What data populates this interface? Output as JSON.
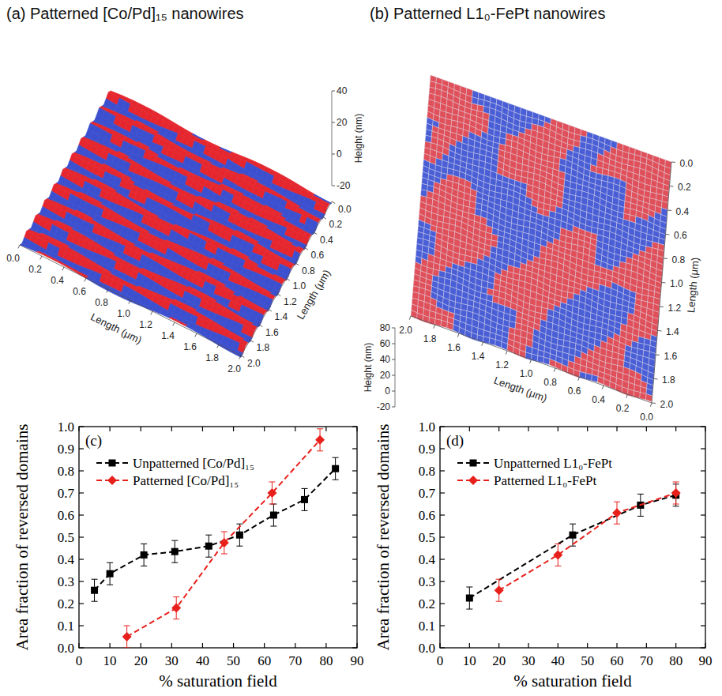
{
  "chart_data": [
    {
      "type": "surface",
      "title": "(a) Patterned [Co/Pd]₁₅ nanowires",
      "xlabel": "Length (μm)",
      "ylabel": "Length (μm)",
      "zlabel": "Height (nm)",
      "xlim": [
        0,
        2
      ],
      "xticks": [
        {
          "value": 0,
          "label": "0.0"
        },
        {
          "value": 0.2,
          "label": "0.2"
        },
        {
          "value": 0.4,
          "label": "0.4"
        },
        {
          "value": 0.6,
          "label": "0.6"
        },
        {
          "value": 0.8,
          "label": "0.8"
        },
        {
          "value": 1,
          "label": "1.0"
        },
        {
          "value": 1.2,
          "label": "1.2"
        },
        {
          "value": 1.4,
          "label": "1.4"
        },
        {
          "value": 1.6,
          "label": "1.6"
        },
        {
          "value": 1.8,
          "label": "1.8"
        },
        {
          "value": 2,
          "label": "2.0"
        }
      ],
      "ylim": [
        0,
        2
      ],
      "yticks": [
        {
          "value": 0,
          "label": "0.0"
        },
        {
          "value": 0.2,
          "label": "0.2"
        },
        {
          "value": 0.4,
          "label": "0.4"
        },
        {
          "value": 0.6,
          "label": "0.6"
        },
        {
          "value": 0.8,
          "label": "0.8"
        },
        {
          "value": 1,
          "label": "1.0"
        },
        {
          "value": 1.2,
          "label": "1.2"
        },
        {
          "value": 1.4,
          "label": "1.4"
        },
        {
          "value": 1.6,
          "label": "1.6"
        },
        {
          "value": 1.8,
          "label": "1.8"
        },
        {
          "value": 2,
          "label": "2.0"
        }
      ],
      "zlim": [
        -20,
        40
      ],
      "zticks": [
        -20,
        0,
        20,
        40
      ]
    },
    {
      "type": "surface",
      "title": "(b) Patterned L1₀-FePt nanowires",
      "xlabel": "Length (μm)",
      "ylabel": "Length (μm)",
      "zlabel": "Height (nm)",
      "xlim": [
        2,
        0
      ],
      "xticks": [
        {
          "value": 2,
          "label": "2.0"
        },
        {
          "value": 1.8,
          "label": "1.8"
        },
        {
          "value": 1.6,
          "label": "1.6"
        },
        {
          "value": 1.4,
          "label": "1.4"
        },
        {
          "value": 1.2,
          "label": "1.2"
        },
        {
          "value": 1,
          "label": "1.0"
        },
        {
          "value": 0.8,
          "label": "0.8"
        },
        {
          "value": 0.6,
          "label": "0.6"
        },
        {
          "value": 0.4,
          "label": "0.4"
        },
        {
          "value": 0.2,
          "label": "0.2"
        },
        {
          "value": 0,
          "label": "0.0"
        }
      ],
      "ylim": [
        0,
        2
      ],
      "yticks": [
        {
          "value": 0,
          "label": "0.0"
        },
        {
          "value": 0.2,
          "label": "0.2"
        },
        {
          "value": 0.4,
          "label": "0.4"
        },
        {
          "value": 0.6,
          "label": "0.6"
        },
        {
          "value": 0.8,
          "label": "0.8"
        },
        {
          "value": 1,
          "label": "1.0"
        },
        {
          "value": 1.2,
          "label": "1.2"
        },
        {
          "value": 1.4,
          "label": "1.4"
        },
        {
          "value": 1.6,
          "label": "1.6"
        },
        {
          "value": 1.8,
          "label": "1.8"
        },
        {
          "value": 2,
          "label": "2.0"
        }
      ],
      "zlim": [
        -20,
        80
      ],
      "zticks": [
        -20,
        0,
        20,
        40,
        60,
        80
      ]
    },
    {
      "type": "line",
      "panel_label": "(c)",
      "xlabel": "% saturation field",
      "ylabel": "Area fraction of reversed domains",
      "xlim": [
        0,
        90
      ],
      "xticks": [
        0,
        10,
        20,
        30,
        40,
        50,
        60,
        70,
        80,
        90
      ],
      "ylim": [
        0,
        1
      ],
      "yticks": [
        {
          "value": 0,
          "label": "0.0"
        },
        {
          "value": 0.1,
          "label": "0.1"
        },
        {
          "value": 0.2,
          "label": "0.2"
        },
        {
          "value": 0.3,
          "label": "0.3"
        },
        {
          "value": 0.4,
          "label": "0.4"
        },
        {
          "value": 0.5,
          "label": "0.5"
        },
        {
          "value": 0.6,
          "label": "0.6"
        },
        {
          "value": 0.7,
          "label": "0.7"
        },
        {
          "value": 0.8,
          "label": "0.8"
        },
        {
          "value": 0.9,
          "label": "0.9"
        },
        {
          "value": 1,
          "label": "1.0"
        }
      ],
      "legend": "upper left",
      "series": [
        {
          "name": "Unpatterned [Co/Pd]₁₅",
          "color": "#000000",
          "marker": "square",
          "line_style": "dashed",
          "x": [
            5,
            10,
            21,
            31,
            42,
            52,
            63,
            73,
            83
          ],
          "values": [
            0.26,
            0.335,
            0.42,
            0.435,
            0.46,
            0.51,
            0.6,
            0.67,
            0.81
          ],
          "errors": [
            0.05,
            0.05,
            0.05,
            0.05,
            0.05,
            0.05,
            0.05,
            0.05,
            0.05
          ]
        },
        {
          "name": "Patterned [Co/Pd]₁₅",
          "color": "#e8201c",
          "marker": "diamond",
          "line_style": "dashed",
          "x": [
            15.5,
            31.5,
            47,
            62.5,
            78
          ],
          "values": [
            0.05,
            0.18,
            0.475,
            0.7,
            0.94
          ],
          "errors": [
            0.05,
            0.05,
            0.05,
            0.05,
            0.05
          ]
        }
      ]
    },
    {
      "type": "line",
      "panel_label": "(d)",
      "xlabel": "% saturation field",
      "ylabel": "Area fraction of reversed domains",
      "xlim": [
        0,
        90
      ],
      "xticks": [
        0,
        10,
        20,
        30,
        40,
        50,
        60,
        70,
        80,
        90
      ],
      "ylim": [
        0,
        1
      ],
      "yticks": [
        {
          "value": 0,
          "label": "0.0"
        },
        {
          "value": 0.1,
          "label": "0.1"
        },
        {
          "value": 0.2,
          "label": "0.2"
        },
        {
          "value": 0.3,
          "label": "0.3"
        },
        {
          "value": 0.4,
          "label": "0.4"
        },
        {
          "value": 0.5,
          "label": "0.5"
        },
        {
          "value": 0.6,
          "label": "0.6"
        },
        {
          "value": 0.7,
          "label": "0.7"
        },
        {
          "value": 0.8,
          "label": "0.8"
        },
        {
          "value": 0.9,
          "label": "0.9"
        },
        {
          "value": 1,
          "label": "1.0"
        }
      ],
      "legend": "upper left",
      "series": [
        {
          "name": "Unpatterned L1₀-FePt",
          "color": "#000000",
          "marker": "square",
          "line_style": "dashed",
          "x": [
            10,
            45,
            68,
            80
          ],
          "values": [
            0.225,
            0.51,
            0.645,
            0.69
          ],
          "errors": [
            0.05,
            0.05,
            0.05,
            0.05
          ]
        },
        {
          "name": "Patterned L1₀-FePt",
          "color": "#e8201c",
          "marker": "diamond",
          "line_style": "dashed",
          "x": [
            20,
            40,
            60,
            80
          ],
          "values": [
            0.26,
            0.42,
            0.61,
            0.7
          ],
          "errors": [
            0.05,
            0.05,
            0.05,
            0.05
          ]
        }
      ]
    }
  ]
}
